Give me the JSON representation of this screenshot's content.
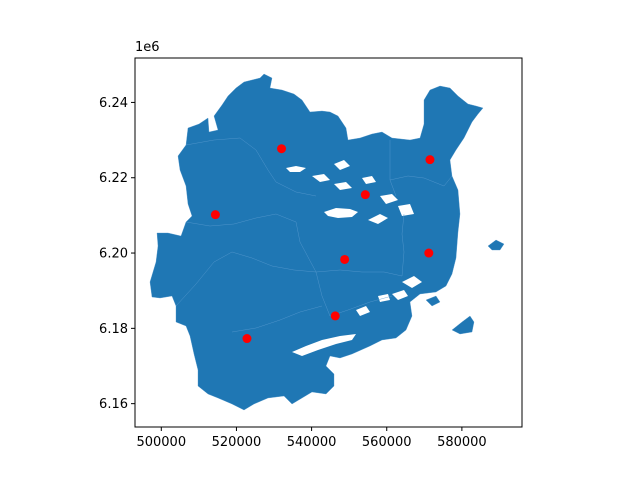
{
  "chart_data": {
    "type": "scatter",
    "title": "",
    "xlabel": "",
    "ylabel": "",
    "xlim": [
      493000,
      596000
    ],
    "ylim": [
      6153800,
      6251800
    ],
    "y_offset_label": "1e6",
    "x_ticks": [
      {
        "value": 500000,
        "label": "500000"
      },
      {
        "value": 520000,
        "label": "520000"
      },
      {
        "value": 540000,
        "label": "540000"
      },
      {
        "value": 560000,
        "label": "560000"
      },
      {
        "value": 580000,
        "label": "580000"
      }
    ],
    "y_ticks": [
      {
        "value": 6160000,
        "label": "6.16"
      },
      {
        "value": 6180000,
        "label": "6.18"
      },
      {
        "value": 6200000,
        "label": "6.20"
      },
      {
        "value": 6220000,
        "label": "6.22"
      },
      {
        "value": 6240000,
        "label": "6.24"
      }
    ],
    "region_color": "#1f77b4",
    "point_color": "#ff0000",
    "points": [
      {
        "x": 532000,
        "y": 6227700
      },
      {
        "x": 571500,
        "y": 6224800
      },
      {
        "x": 554300,
        "y": 6215500
      },
      {
        "x": 514400,
        "y": 6210200
      },
      {
        "x": 571200,
        "y": 6200000
      },
      {
        "x": 548800,
        "y": 6198300
      },
      {
        "x": 546300,
        "y": 6183300
      },
      {
        "x": 522800,
        "y": 6177300
      }
    ],
    "grid": false,
    "legend": "none"
  }
}
